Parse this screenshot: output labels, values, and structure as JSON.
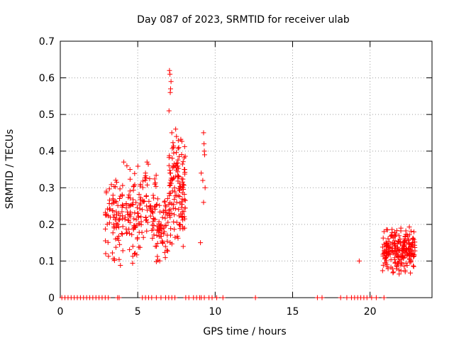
{
  "chart_data": {
    "type": "scatter",
    "title": "Day 087 of 2023, SRMTID for receiver ulab",
    "xlabel": "GPS time / hours",
    "ylabel": "SRMTID / TECUs",
    "xlim": [
      0,
      24
    ],
    "ylim": [
      0,
      0.7
    ],
    "xticks": [
      0,
      5,
      10,
      15,
      20
    ],
    "yticks": [
      0,
      0.1,
      0.2,
      0.3,
      0.4,
      0.5,
      0.6,
      0.7
    ],
    "grid": true,
    "marker": "+",
    "series": [
      {
        "name": "SRMTID",
        "color": "#ff0000",
        "clusters": [
          {
            "x_range": [
              2.9,
              5.2
            ],
            "y_range": [
              0.07,
              0.37
            ],
            "count": 160
          },
          {
            "x_range": [
              5.2,
              6.2
            ],
            "y_range": [
              0.12,
              0.37
            ],
            "count": 60
          },
          {
            "x_range": [
              6.2,
              7.0
            ],
            "y_range": [
              0.09,
              0.3
            ],
            "count": 60
          },
          {
            "x_range": [
              7.0,
              8.1
            ],
            "y_range": [
              0.13,
              0.46
            ],
            "count": 140
          },
          {
            "x_range": [
              20.8,
              22.9
            ],
            "y_range": [
              0.06,
              0.2
            ],
            "count": 220
          }
        ],
        "points": [
          [
            7.05,
            0.62
          ],
          [
            7.08,
            0.61
          ],
          [
            7.12,
            0.57
          ],
          [
            7.1,
            0.56
          ],
          [
            7.15,
            0.59
          ],
          [
            7.02,
            0.51
          ],
          [
            7.45,
            0.46
          ],
          [
            7.5,
            0.44
          ],
          [
            7.2,
            0.45
          ],
          [
            7.3,
            0.41
          ],
          [
            9.25,
            0.45
          ],
          [
            9.28,
            0.42
          ],
          [
            9.32,
            0.39
          ],
          [
            9.3,
            0.4
          ],
          [
            9.1,
            0.34
          ],
          [
            9.2,
            0.32
          ],
          [
            9.35,
            0.3
          ],
          [
            9.25,
            0.26
          ],
          [
            9.05,
            0.15
          ],
          [
            19.3,
            0.1
          ],
          [
            4.1,
            0.37
          ],
          [
            4.3,
            0.36
          ],
          [
            4.5,
            0.35
          ],
          [
            5.6,
            0.37
          ],
          [
            5.5,
            0.34
          ],
          [
            3.4,
            0.27
          ]
        ],
        "zeros": [
          0.1,
          0.3,
          0.5,
          0.7,
          0.9,
          1.1,
          1.3,
          1.5,
          1.7,
          1.9,
          2.1,
          2.3,
          2.5,
          2.7,
          2.9,
          3.1,
          3.7,
          3.8,
          5.3,
          5.5,
          5.7,
          5.9,
          6.2,
          6.5,
          6.8,
          7.0,
          7.2,
          7.4,
          8.1,
          8.3,
          8.6,
          8.8,
          9.0,
          9.1,
          9.3,
          9.6,
          9.8,
          10.1,
          10.5,
          12.6,
          16.6,
          16.9,
          18.1,
          18.5,
          18.8,
          19.0,
          19.2,
          19.4,
          19.6,
          19.8,
          20.1,
          20.4,
          20.9
        ]
      }
    ]
  }
}
